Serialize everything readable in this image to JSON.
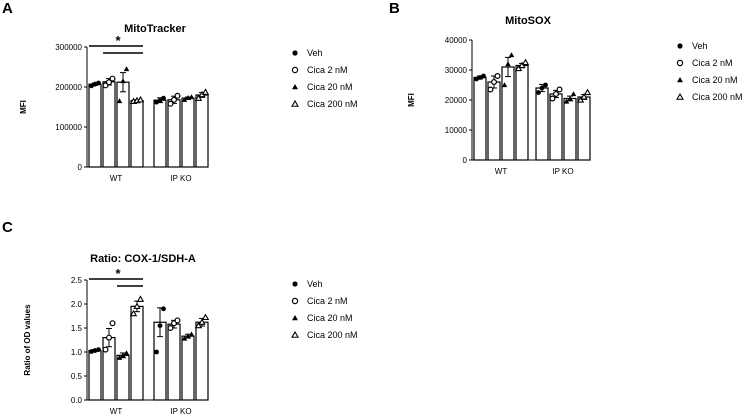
{
  "panels": [
    "A",
    "B",
    "C"
  ],
  "legend": [
    "Veh",
    "Cica 2 nM",
    "Cica 20 nM",
    "Cica 200 nM"
  ],
  "chart_data": [
    {
      "type": "bar",
      "title": "MitoTracker",
      "ylabel": "MFI",
      "categories": [
        "WT",
        "IP KO"
      ],
      "ylim": [
        0,
        300000
      ],
      "yticks": [
        0,
        100000,
        200000,
        300000
      ],
      "tick_labels": [
        "0",
        "100000",
        "200000",
        "300000"
      ],
      "series": [
        {
          "name": "Veh",
          "values": [
            207000,
            167000
          ],
          "errors": [
            3000,
            6000
          ],
          "points": [
            [
              203000,
              207000,
              210000
            ],
            [
              162000,
              166000,
              172000
            ]
          ]
        },
        {
          "name": "Cica 2 nM",
          "values": [
            213000,
            168000
          ],
          "errors": [
            8000,
            9000
          ],
          "points": [
            [
              204000,
              212000,
              221000
            ],
            [
              158000,
              168000,
              178000
            ]
          ]
        },
        {
          "name": "Cica 20 nM",
          "values": [
            212000,
            172000
          ],
          "errors": [
            24000,
            3000
          ],
          "points": [
            [
              165000,
              215000,
              245000
            ],
            [
              168000,
              173000,
              175000
            ]
          ]
        },
        {
          "name": "Cica 200 nM",
          "values": [
            166000,
            180000
          ],
          "errors": [
            2000,
            6000
          ],
          "points": [
            [
              164000,
              166000,
              168000
            ],
            [
              172000,
              181000,
              187000
            ]
          ]
        }
      ],
      "significance": [
        {
          "label": "*",
          "from_series": 0,
          "to_series": 3,
          "category": 0,
          "level": 1
        },
        {
          "label": "",
          "from_series": 1,
          "to_series": 3,
          "category": 0,
          "level": 0
        }
      ]
    },
    {
      "type": "bar",
      "title": "MitoSOX",
      "ylabel": "MFI",
      "categories": [
        "WT",
        "IP KO"
      ],
      "ylim": [
        0,
        40000
      ],
      "yticks": [
        0,
        10000,
        20000,
        30000,
        40000
      ],
      "tick_labels": [
        "0",
        "10000",
        "20000",
        "30000",
        "40000"
      ],
      "series": [
        {
          "name": "Veh",
          "values": [
            27500,
            24000
          ],
          "errors": [
            500,
            1200
          ],
          "points": [
            [
              27000,
              27500,
              28000
            ],
            [
              22500,
              24000,
              25000
            ]
          ]
        },
        {
          "name": "Cica 2 nM",
          "values": [
            26000,
            22000
          ],
          "errors": [
            2000,
            1200
          ],
          "points": [
            [
              23500,
              26000,
              28000
            ],
            [
              20500,
              22000,
              23500
            ]
          ]
        },
        {
          "name": "Cica 20 nM",
          "values": [
            31000,
            20500
          ],
          "errors": [
            3200,
            800
          ],
          "points": [
            [
              25000,
              32000,
              35000
            ],
            [
              19500,
              20500,
              22000
            ]
          ]
        },
        {
          "name": "Cica 200 nM",
          "values": [
            31500,
            21000
          ],
          "errors": [
            700,
            800
          ],
          "points": [
            [
              30500,
              31500,
              32500
            ],
            [
              20000,
              21000,
              22500
            ]
          ]
        }
      ],
      "significance": []
    },
    {
      "type": "bar",
      "title": "Ratio: COX-1/SDH-A",
      "ylabel": "Ratio of OD values",
      "categories": [
        "WT",
        "IP KO"
      ],
      "ylim": [
        0,
        2.5
      ],
      "yticks": [
        0,
        0.5,
        1.0,
        1.5,
        2.0,
        2.5
      ],
      "tick_labels": [
        "0.0",
        "0.5",
        "1.0",
        "1.5",
        "2.0",
        "2.5"
      ],
      "series": [
        {
          "name": "Veh",
          "values": [
            1.03,
            1.62
          ],
          "errors": [
            0.02,
            0.3
          ],
          "points": [
            [
              1.01,
              1.03,
              1.05
            ],
            [
              1.0,
              1.55,
              1.9
            ]
          ]
        },
        {
          "name": "Cica 2 nM",
          "values": [
            1.3,
            1.58
          ],
          "errors": [
            0.19,
            0.08
          ],
          "points": [
            [
              1.05,
              1.3,
              1.6
            ],
            [
              1.5,
              1.6,
              1.66
            ]
          ]
        },
        {
          "name": "Cica 20 nM",
          "values": [
            0.93,
            1.33
          ],
          "errors": [
            0.05,
            0.04
          ],
          "points": [
            [
              0.88,
              0.93,
              0.98
            ],
            [
              1.28,
              1.33,
              1.37
            ]
          ]
        },
        {
          "name": "Cica 200 nM",
          "values": [
            1.95,
            1.62
          ],
          "errors": [
            0.11,
            0.08
          ],
          "points": [
            [
              1.8,
              1.95,
              2.1
            ],
            [
              1.55,
              1.62,
              1.72
            ]
          ]
        }
      ],
      "significance": [
        {
          "label": "*",
          "from_series": 0,
          "to_series": 3,
          "category": 0,
          "level": 1
        },
        {
          "label": "",
          "from_series": 2,
          "to_series": 3,
          "category": 0,
          "level": 0
        }
      ]
    }
  ]
}
